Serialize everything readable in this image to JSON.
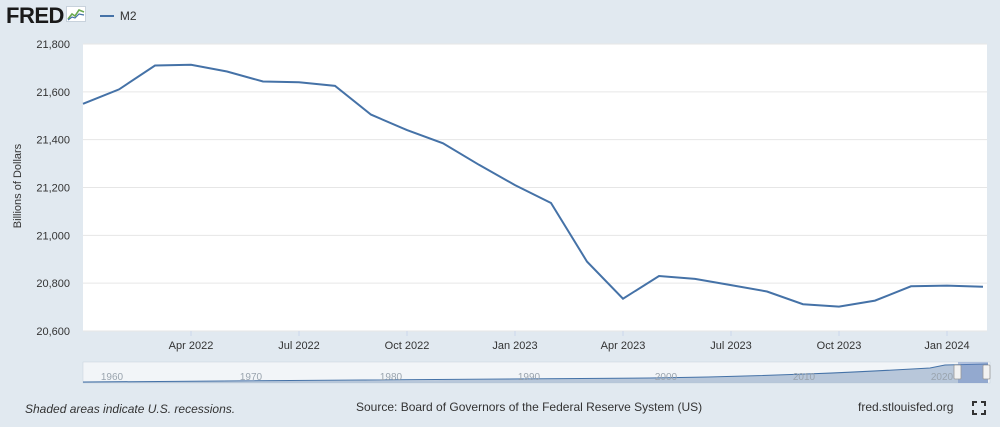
{
  "logo": {
    "text": "FRED",
    "icon": "fred-graph-icon"
  },
  "legend": {
    "series_name": "M2",
    "color": "#4572a7"
  },
  "footer": {
    "recession_note": "Shaded areas indicate U.S. recessions.",
    "source": "Source: Board of Governors of the Federal Reserve System (US)",
    "site": "fred.stlouisfed.org",
    "fullscreen_icon": "fullscreen-icon"
  },
  "chart_data": {
    "type": "line",
    "ylabel": "Billions of Dollars",
    "ylim": [
      20600,
      21800
    ],
    "yticks": [
      {
        "value": 20600,
        "label": "20,600"
      },
      {
        "value": 20800,
        "label": "20,800"
      },
      {
        "value": 21000,
        "label": "21,000"
      },
      {
        "value": 21200,
        "label": "21,200"
      },
      {
        "value": 21400,
        "label": "21,400"
      },
      {
        "value": 21600,
        "label": "21,600"
      },
      {
        "value": 21800,
        "label": "21,800"
      }
    ],
    "xticks": [
      {
        "index": 3,
        "label": "Apr 2022"
      },
      {
        "index": 6,
        "label": "Jul 2022"
      },
      {
        "index": 9,
        "label": "Oct 2022"
      },
      {
        "index": 12,
        "label": "Jan 2023"
      },
      {
        "index": 15,
        "label": "Apr 2023"
      },
      {
        "index": 18,
        "label": "Jul 2023"
      },
      {
        "index": 21,
        "label": "Oct 2023"
      },
      {
        "index": 24,
        "label": "Jan 2024"
      }
    ],
    "series": [
      {
        "name": "M2",
        "color": "#4572a7",
        "x": [
          "Jan 2022",
          "Feb 2022",
          "Mar 2022",
          "Apr 2022",
          "May 2022",
          "Jun 2022",
          "Jul 2022",
          "Aug 2022",
          "Sep 2022",
          "Oct 2022",
          "Nov 2022",
          "Dec 2022",
          "Jan 2023",
          "Feb 2023",
          "Mar 2023",
          "Apr 2023",
          "May 2023",
          "Jun 2023",
          "Jul 2023",
          "Aug 2023",
          "Sep 2023",
          "Oct 2023",
          "Nov 2023",
          "Dec 2023",
          "Jan 2024",
          "Feb 2024"
        ],
        "values": [
          21550,
          21610,
          21710,
          21713,
          21685,
          21643,
          21640,
          21625,
          21505,
          21440,
          21385,
          21295,
          21210,
          21135,
          20890,
          20735,
          20830,
          20818,
          20792,
          20765,
          20712,
          20702,
          20727,
          20787,
          20790,
          20785
        ]
      }
    ],
    "navigator": {
      "labels": [
        "1960",
        "1970",
        "1980",
        "1990",
        "2000",
        "2010",
        "2020"
      ]
    }
  }
}
